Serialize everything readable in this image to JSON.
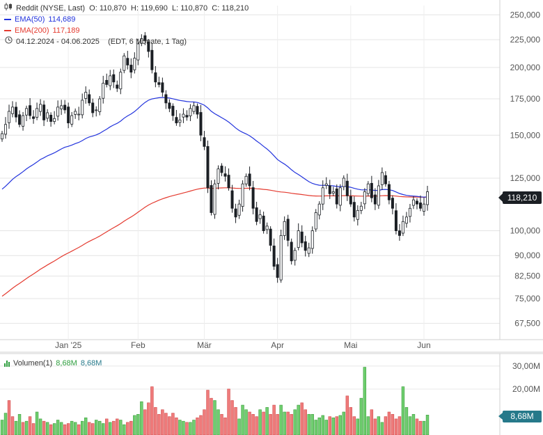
{
  "header": {
    "symbol_line": "Reddit (NYSE, Last)  O: 110,870  H: 119,690  L: 110,870  C: 118,210",
    "ema50_label": "EMA(50)",
    "ema50_value": "114,689",
    "ema200_label": "EMA(200)",
    "ema200_value": "117,189",
    "range_line": "04.12.2024 - 04.06.2025    (EDT, 6 Monate, 1 Tag)",
    "candle_icon": "candlestick-icon",
    "clock_icon": "clock-icon"
  },
  "volume_header": {
    "label": "Volumen(1)",
    "value1": "8,68M",
    "value2": "8,68M",
    "icon": "volume-bars-icon"
  },
  "badges": {
    "last_price": "118,210",
    "last_volume": "8,68M"
  },
  "colors": {
    "ema50": "#2233dd",
    "ema200": "#e43a2f",
    "vol_up": "#6fce6f",
    "vol_down": "#ef7b7b",
    "candle": "#1b1f24",
    "badge_dark": "#1b1f24",
    "badge_vol": "#26798a"
  },
  "chart_data": [
    {
      "type": "candlestick",
      "title": "Reddit (NYSE, Last)",
      "scale": "log",
      "ylim": [
        63000,
        260000
      ],
      "y_ticks": [
        {
          "value": 250000,
          "label": "250,000"
        },
        {
          "value": 225000,
          "label": "225,000"
        },
        {
          "value": 200000,
          "label": "200,000"
        },
        {
          "value": 175000,
          "label": "175,000"
        },
        {
          "value": 150000,
          "label": "150,000"
        },
        {
          "value": 125000,
          "label": "125,000"
        },
        {
          "value": 100000,
          "label": "100,000"
        },
        {
          "value": 90000,
          "label": "90,000"
        },
        {
          "value": 82500,
          "label": "82,500"
        },
        {
          "value": 75000,
          "label": "75,000"
        },
        {
          "value": 67500,
          "label": "67,500"
        }
      ],
      "x_ticks": [
        {
          "index": 19,
          "label": "Jan '25"
        },
        {
          "index": 39,
          "label": "Feb"
        },
        {
          "index": 58,
          "label": "Mär"
        },
        {
          "index": 79,
          "label": "Apr"
        },
        {
          "index": 100,
          "label": "Mai"
        },
        {
          "index": 121,
          "label": "Jun"
        }
      ],
      "series": [
        {
          "name": "EMA(50)",
          "last": 114.689
        },
        {
          "name": "EMA(200)",
          "last": 117.189
        }
      ],
      "last_close": 118.21,
      "closes": [
        151,
        157,
        166,
        169,
        162,
        157,
        163,
        168,
        163,
        161,
        168,
        171,
        160,
        165,
        159,
        161,
        169,
        170,
        167,
        158,
        163,
        166,
        164,
        174,
        180,
        172,
        165,
        167,
        175,
        187,
        186,
        193,
        188,
        183,
        196,
        210,
        202,
        196,
        208,
        221,
        226,
        224,
        214,
        198,
        188,
        186,
        180,
        172,
        168,
        163,
        158,
        160,
        164,
        162,
        168,
        170,
        164,
        150,
        143,
        120,
        108,
        122,
        130,
        128,
        126,
        120,
        110,
        106,
        112,
        122,
        126,
        121,
        110,
        104,
        107,
        100,
        102,
        94,
        86,
        82,
        98,
        104,
        96,
        88,
        92,
        100,
        95,
        92,
        93,
        100,
        108,
        112,
        120,
        122,
        117,
        118,
        112,
        120,
        125,
        116,
        112,
        106,
        109,
        111,
        118,
        122,
        115,
        112,
        121,
        128,
        122,
        114,
        110,
        100,
        98,
        104,
        106,
        110,
        114,
        112,
        110,
        112,
        118
      ]
    },
    {
      "type": "bar",
      "title": "Volumen(1)",
      "y_ticks": [
        {
          "value": 30,
          "label": "30,00M"
        },
        {
          "value": 20,
          "label": "20,00M"
        }
      ],
      "last": 8.68,
      "values_millions": [
        6.5,
        9.5,
        15,
        8,
        6,
        9,
        5.5,
        6,
        8,
        5,
        10,
        7,
        6,
        5.5,
        4.5,
        5,
        6.5,
        5.5,
        4.5,
        5,
        6,
        5.5,
        4.5,
        6,
        7.5,
        5.5,
        5,
        6.5,
        6,
        5,
        7,
        5.5,
        6,
        7,
        6.5,
        4.5,
        5.5,
        6,
        8.5,
        9,
        14.5,
        11,
        14,
        21,
        12,
        9,
        11,
        9.5,
        8,
        9.5,
        7.5,
        6.5,
        6,
        5.5,
        5.5,
        6.5,
        7.5,
        8.5,
        11,
        19.5,
        16,
        15,
        11,
        9,
        7.5,
        20,
        15,
        12,
        7,
        13,
        11,
        10,
        9,
        8,
        11,
        10,
        12,
        9,
        13,
        9,
        13,
        10,
        10,
        9,
        11,
        13,
        14,
        11,
        9,
        9,
        6.5,
        7.5,
        8.5,
        6.5,
        8,
        7.5,
        8,
        8.5,
        10,
        17,
        12,
        8,
        7,
        16,
        29.5,
        8,
        11,
        7,
        8,
        5.5,
        8,
        10,
        9,
        7,
        8,
        21,
        12,
        8,
        9,
        7,
        6,
        6,
        8.68
      ],
      "direction": [
        1,
        1,
        0,
        0,
        1,
        1,
        0,
        1,
        0,
        0,
        1,
        1,
        0,
        1,
        0,
        1,
        1,
        1,
        0,
        0,
        1,
        1,
        0,
        1,
        1,
        0,
        0,
        1,
        1,
        1,
        0,
        1,
        0,
        0,
        1,
        1,
        0,
        0,
        1,
        1,
        1,
        0,
        0,
        0,
        0,
        0,
        0,
        0,
        0,
        0,
        0,
        1,
        1,
        0,
        1,
        1,
        0,
        0,
        0,
        0,
        0,
        1,
        1,
        0,
        0,
        0,
        0,
        0,
        1,
        1,
        1,
        0,
        0,
        0,
        1,
        0,
        1,
        0,
        0,
        0,
        1,
        1,
        0,
        0,
        1,
        1,
        0,
        0,
        1,
        1,
        1,
        1,
        1,
        1,
        0,
        1,
        0,
        1,
        1,
        0,
        0,
        0,
        1,
        1,
        1,
        1,
        0,
        0,
        1,
        1,
        0,
        0,
        0,
        0,
        0,
        1,
        1,
        1,
        1,
        0,
        0,
        1,
        1
      ]
    }
  ]
}
